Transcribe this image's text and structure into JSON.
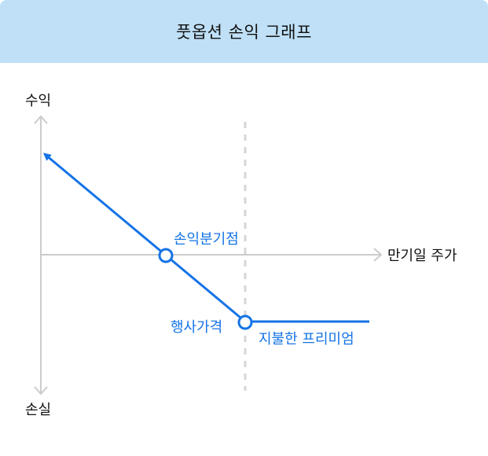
{
  "title": "풋옵션 손익 그래프",
  "axes": {
    "y_top_label": "수익",
    "y_bottom_label": "손실",
    "x_label": "만기일 주가"
  },
  "annotations": {
    "breakeven": "손익분기점",
    "strike": "행사가격",
    "premium": "지불한 프리미엄"
  },
  "colors": {
    "header_bg": "#bfe0f7",
    "payoff_line": "#1473e6",
    "axis": "#cccccc",
    "guide": "#d6d6d6"
  }
}
